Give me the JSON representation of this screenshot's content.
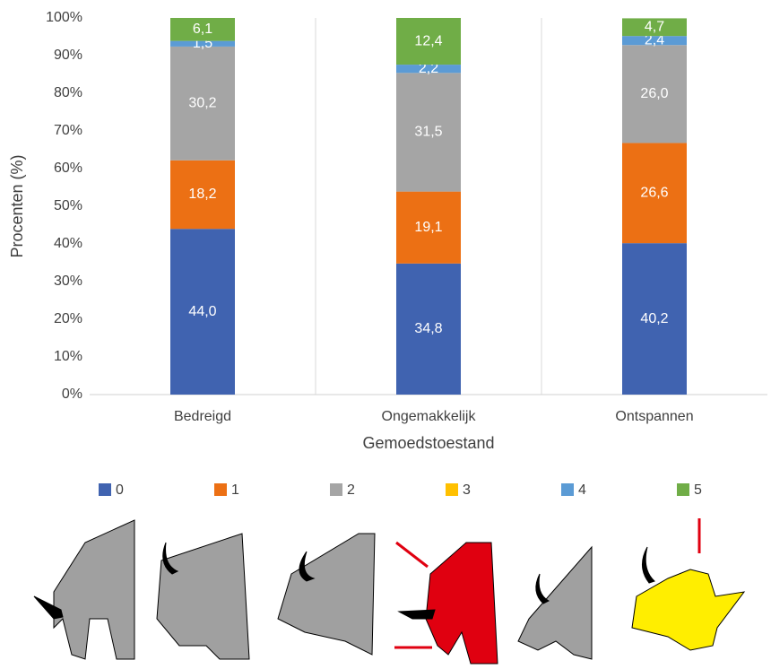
{
  "chart_data": {
    "type": "stacked_bar",
    "xlabel": "Gemoedstoestand",
    "ylabel": "Procenten (%)",
    "categories": [
      "Bedreigd",
      "Ongemakkelijk",
      "Ontspannen"
    ],
    "series": [
      {
        "name": "0",
        "color": "#4063b0",
        "values": [
          44.0,
          34.8,
          40.2
        ],
        "value_labels": [
          "44,0",
          "34,8",
          "40,2"
        ]
      },
      {
        "name": "1",
        "color": "#ec7014",
        "values": [
          18.2,
          19.1,
          26.6
        ],
        "value_labels": [
          "18,2",
          "19,1",
          "26,6"
        ]
      },
      {
        "name": "2",
        "color": "#a5a5a5",
        "values": [
          30.2,
          31.5,
          26.0
        ],
        "value_labels": [
          "30,2",
          "31,5",
          "26,0"
        ]
      },
      {
        "name": "3",
        "color": "#ffc000",
        "values": [
          0,
          0,
          0
        ]
      },
      {
        "name": "4",
        "color": "#5b9bd5",
        "values": [
          1.5,
          2.2,
          2.4
        ],
        "value_labels": [
          "1,5",
          "2,2",
          "2,4"
        ]
      },
      {
        "name": "5",
        "color": "#70ad47",
        "values": [
          6.1,
          12.4,
          4.7
        ],
        "value_labels": [
          "6,1",
          "12,4",
          "4,7"
        ]
      }
    ],
    "ylim": [
      0,
      100
    ],
    "yticks": [
      {
        "value": 0,
        "label": "0%"
      },
      {
        "value": 10,
        "label": "10%"
      },
      {
        "value": 20,
        "label": "20%"
      },
      {
        "value": 30,
        "label": "30%"
      },
      {
        "value": 40,
        "label": "40%"
      },
      {
        "value": 50,
        "label": "50%"
      },
      {
        "value": 60,
        "label": "60%"
      },
      {
        "value": 70,
        "label": "70%"
      },
      {
        "value": 80,
        "label": "80%"
      },
      {
        "value": 90,
        "label": "90%"
      },
      {
        "value": 100,
        "label": "100%"
      }
    ],
    "legend": "bottom"
  }
}
